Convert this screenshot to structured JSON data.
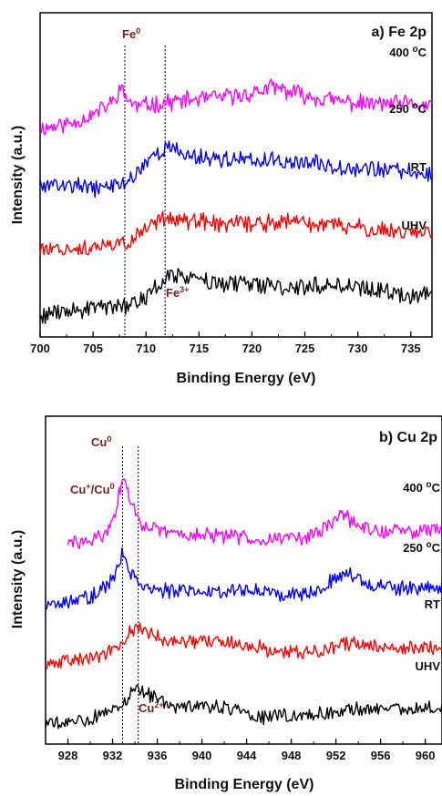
{
  "chart_data": [
    {
      "type": "line",
      "title": "a) Fe 2p",
      "xlabel": "Binding Energy (eV)",
      "ylabel": "Intensity (a.u.)",
      "xlim": [
        700,
        737
      ],
      "xticks": [
        "700",
        "705",
        "710",
        "715",
        "720",
        "725",
        "730",
        "735"
      ],
      "y_ticks_shown": false,
      "grid": false,
      "peak_lines": [
        {
          "label": "Fe",
          "sup": "0",
          "x": 708.0
        },
        {
          "label": "Fe",
          "sup": "3+",
          "x": 711.8
        }
      ],
      "series": [
        {
          "name": "400 °C",
          "color": "#ff00ff",
          "offset": 3.0,
          "x": [
            700,
            703,
            705,
            707,
            707.5,
            708,
            709,
            711,
            713,
            716,
            719,
            722,
            725,
            728,
            731,
            734,
            737
          ],
          "y": [
            0.35,
            0.45,
            0.6,
            0.85,
            1.1,
            0.95,
            0.75,
            0.8,
            0.85,
            0.9,
            0.95,
            1.1,
            0.95,
            0.85,
            0.8,
            0.8,
            0.75
          ]
        },
        {
          "name": "250 °C",
          "color": "#0000ff",
          "offset": 2.0,
          "x": [
            700,
            703,
            705,
            707,
            708,
            709,
            710,
            711,
            712,
            714,
            717,
            720,
            723,
            726,
            729,
            732,
            735,
            737
          ],
          "y": [
            0.4,
            0.4,
            0.35,
            0.4,
            0.45,
            0.6,
            0.85,
            1.0,
            1.1,
            0.95,
            0.9,
            0.85,
            0.85,
            0.8,
            0.75,
            0.7,
            0.65,
            0.6
          ]
        },
        {
          "name": "RT",
          "color": "#ff0000",
          "offset": 1.0,
          "x": [
            700,
            703,
            705,
            707,
            708,
            709,
            710,
            711,
            712,
            714,
            717,
            720,
            723,
            726,
            729,
            732,
            735,
            737
          ],
          "y": [
            0.35,
            0.35,
            0.35,
            0.4,
            0.45,
            0.55,
            0.75,
            0.85,
            0.95,
            0.85,
            0.8,
            0.8,
            0.85,
            0.8,
            0.75,
            0.7,
            0.65,
            0.65
          ]
        },
        {
          "name": "UHV",
          "color": "#000000",
          "offset": 0.0,
          "x": [
            700,
            703,
            705,
            707,
            708,
            709,
            710,
            711,
            712,
            713,
            716,
            719,
            722,
            725,
            728,
            731,
            734,
            737
          ],
          "y": [
            0.25,
            0.3,
            0.35,
            0.4,
            0.4,
            0.45,
            0.6,
            0.75,
            0.9,
            0.95,
            0.85,
            0.8,
            0.75,
            0.75,
            0.8,
            0.7,
            0.6,
            0.6
          ]
        }
      ]
    },
    {
      "type": "line",
      "title": "b) Cu 2p",
      "xlabel": "Binding Energy (eV)",
      "ylabel": "Intensity (a.u.)",
      "xlim": [
        926,
        961.5
      ],
      "xticks": [
        "928",
        "932",
        "936",
        "940",
        "944",
        "948",
        "952",
        "956",
        "960"
      ],
      "y_ticks_shown": false,
      "grid": false,
      "peak_lines": [
        {
          "label": "Cu",
          "sup": "0",
          "x": 932.9
        },
        {
          "label": "Cu",
          "sup": "+",
          "label2": "/Cu",
          "sup2": "0",
          "x": 932.9
        },
        {
          "label": "Cu",
          "sup": "2+",
          "x": 934.3
        }
      ],
      "series": [
        {
          "name": "400 °C",
          "color": "#ff00ff",
          "offset": 3.0,
          "x": [
            928,
            930,
            931.5,
            932.3,
            932.9,
            933.6,
            934.5,
            936,
            938,
            942,
            946,
            950,
            951.5,
            952.5,
            954,
            956,
            958,
            961.5
          ],
          "y": [
            0.2,
            0.25,
            0.4,
            0.9,
            1.6,
            1.1,
            0.65,
            0.45,
            0.4,
            0.35,
            0.3,
            0.35,
            0.6,
            0.85,
            0.55,
            0.45,
            0.45,
            0.5
          ]
        },
        {
          "name": "250 °C",
          "color": "#0000ff",
          "offset": 2.0,
          "x": [
            926,
            928,
            930,
            931.5,
            932.3,
            932.9,
            933.6,
            935,
            937,
            940,
            944,
            947,
            950,
            952,
            953,
            955,
            958,
            961.5
          ],
          "y": [
            0.2,
            0.25,
            0.35,
            0.55,
            0.85,
            1.3,
            0.85,
            0.55,
            0.45,
            0.45,
            0.5,
            0.4,
            0.45,
            0.75,
            0.85,
            0.6,
            0.5,
            0.55
          ]
        },
        {
          "name": "RT",
          "color": "#ff0000",
          "offset": 1.0,
          "x": [
            926,
            928,
            930,
            932,
            933,
            934,
            935,
            936,
            938,
            941,
            944,
            947,
            950,
            952,
            954,
            956,
            958,
            961.5
          ],
          "y": [
            0.2,
            0.25,
            0.3,
            0.45,
            0.7,
            0.95,
            0.9,
            0.75,
            0.65,
            0.65,
            0.6,
            0.45,
            0.45,
            0.55,
            0.65,
            0.55,
            0.5,
            0.55
          ]
        },
        {
          "name": "UHV",
          "color": "#000000",
          "offset": 0.0,
          "x": [
            926,
            928,
            930,
            932,
            933,
            934,
            935,
            936,
            938,
            940,
            943,
            944.5,
            946,
            948,
            951,
            954,
            957,
            961.5
          ],
          "y": [
            0.2,
            0.25,
            0.3,
            0.45,
            0.65,
            0.9,
            0.85,
            0.7,
            0.55,
            0.55,
            0.55,
            0.3,
            0.35,
            0.35,
            0.4,
            0.5,
            0.5,
            0.55
          ]
        }
      ]
    }
  ]
}
